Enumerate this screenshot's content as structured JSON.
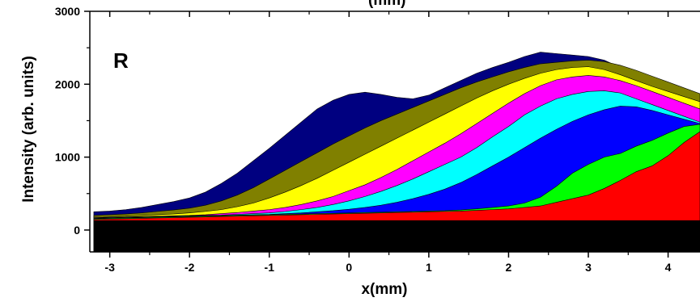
{
  "chart_data": {
    "type": "area",
    "panel_label": "R",
    "title_fragment": "(mm)",
    "xlabel": "x(mm)",
    "ylabel": "Intensity (arb. units)",
    "xlim": [
      -3.25,
      4.4
    ],
    "ylim": [
      -300,
      3000
    ],
    "xticks": [
      -3,
      -2,
      -1,
      0,
      1,
      2,
      3,
      4
    ],
    "yticks": [
      0,
      1000,
      2000,
      3000
    ],
    "grid": false,
    "legend": "none",
    "x": [
      -3.2,
      -3.0,
      -2.8,
      -2.6,
      -2.4,
      -2.2,
      -2.0,
      -1.8,
      -1.6,
      -1.4,
      -1.2,
      -1.0,
      -0.8,
      -0.6,
      -0.4,
      -0.2,
      0.0,
      0.2,
      0.4,
      0.6,
      0.8,
      1.0,
      1.2,
      1.4,
      1.6,
      1.8,
      2.0,
      2.2,
      2.4,
      2.6,
      2.8,
      3.0,
      3.2,
      3.4,
      3.6,
      3.8,
      4.0,
      4.2,
      4.4
    ],
    "series": [
      {
        "color": "#000000",
        "values": [
          130,
          130,
          130,
          130,
          130,
          130,
          130,
          130,
          130,
          130,
          130,
          130,
          130,
          130,
          130,
          130,
          130,
          130,
          130,
          130,
          130,
          130,
          130,
          130,
          130,
          130,
          130,
          130,
          130,
          130,
          130,
          130,
          130,
          130,
          130,
          130,
          130,
          130,
          130
        ]
      },
      {
        "color": "#ff0000",
        "values": [
          145,
          150,
          155,
          160,
          165,
          170,
          175,
          180,
          185,
          190,
          195,
          200,
          205,
          210,
          215,
          220,
          225,
          230,
          235,
          240,
          245,
          250,
          255,
          260,
          270,
          280,
          290,
          310,
          330,
          380,
          430,
          480,
          570,
          680,
          800,
          880,
          1020,
          1200,
          1350
        ]
      },
      {
        "color": "#00ff00",
        "values": [
          155,
          160,
          165,
          170,
          175,
          180,
          185,
          190,
          195,
          200,
          205,
          210,
          215,
          220,
          225,
          230,
          235,
          240,
          245,
          250,
          255,
          260,
          265,
          275,
          290,
          310,
          330,
          370,
          450,
          600,
          780,
          900,
          1000,
          1050,
          1150,
          1230,
          1330,
          1420,
          1450
        ]
      },
      {
        "color": "#0000ff",
        "values": [
          160,
          165,
          170,
          175,
          180,
          185,
          190,
          195,
          200,
          205,
          210,
          215,
          225,
          235,
          250,
          265,
          285,
          310,
          340,
          380,
          430,
          490,
          560,
          650,
          760,
          880,
          1000,
          1130,
          1260,
          1380,
          1490,
          1580,
          1650,
          1700,
          1690,
          1640,
          1580,
          1520,
          1460
        ]
      },
      {
        "color": "#00ffff",
        "values": [
          165,
          170,
          175,
          180,
          185,
          190,
          195,
          200,
          205,
          215,
          225,
          235,
          255,
          280,
          310,
          350,
          400,
          460,
          530,
          610,
          700,
          800,
          900,
          1000,
          1130,
          1280,
          1420,
          1580,
          1700,
          1800,
          1860,
          1900,
          1910,
          1880,
          1800,
          1720,
          1640,
          1560,
          1480
        ]
      },
      {
        "color": "#ff00ff",
        "values": [
          170,
          175,
          180,
          185,
          190,
          195,
          200,
          210,
          225,
          240,
          260,
          280,
          310,
          350,
          400,
          460,
          540,
          620,
          720,
          830,
          950,
          1070,
          1190,
          1320,
          1460,
          1600,
          1740,
          1870,
          1980,
          2060,
          2100,
          2120,
          2100,
          2050,
          1980,
          1900,
          1820,
          1740,
          1660
        ]
      },
      {
        "color": "#ffff00",
        "values": [
          180,
          185,
          190,
          200,
          210,
          220,
          235,
          255,
          280,
          320,
          370,
          440,
          520,
          610,
          710,
          820,
          930,
          1040,
          1150,
          1260,
          1370,
          1480,
          1590,
          1700,
          1810,
          1910,
          2000,
          2080,
          2150,
          2200,
          2230,
          2240,
          2200,
          2130,
          2050,
          1970,
          1900,
          1830,
          1760
        ]
      },
      {
        "color": "#808000",
        "values": [
          200,
          210,
          220,
          235,
          255,
          275,
          300,
          340,
          400,
          480,
          580,
          700,
          820,
          940,
          1060,
          1180,
          1290,
          1400,
          1500,
          1590,
          1680,
          1770,
          1860,
          1950,
          2030,
          2100,
          2170,
          2230,
          2280,
          2300,
          2320,
          2330,
          2310,
          2260,
          2190,
          2110,
          2030,
          1950,
          1870
        ]
      },
      {
        "color": "#000080",
        "values": [
          250,
          260,
          280,
          310,
          350,
          390,
          440,
          520,
          640,
          780,
          950,
          1120,
          1300,
          1480,
          1660,
          1780,
          1860,
          1890,
          1860,
          1820,
          1800,
          1850,
          1950,
          2050,
          2150,
          2230,
          2300,
          2380,
          2440,
          2420,
          2400,
          2380,
          2330,
          2230,
          2130,
          2040,
          1970,
          1900,
          1820
        ]
      }
    ]
  }
}
